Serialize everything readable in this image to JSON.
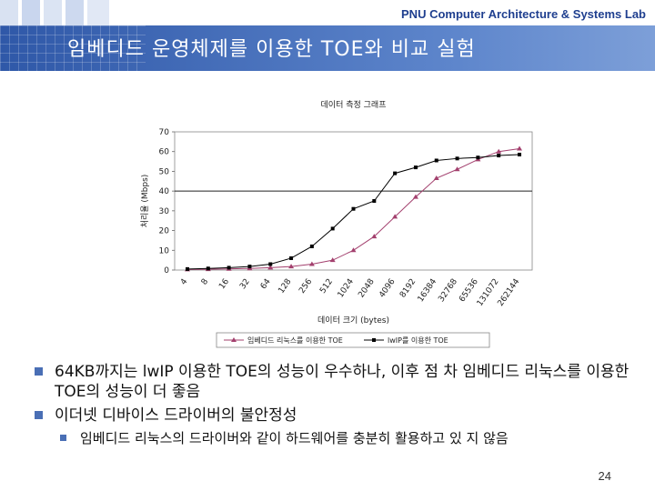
{
  "header": {
    "lab_title": "PNU Computer Architecture & Systems Lab",
    "slide_title": "임베디드 운영체제를 이용한 TOE와 비교 실험"
  },
  "chart_data": {
    "type": "line",
    "title": "데이터 측정 그래프",
    "xlabel": "데이터 크기 (bytes)",
    "ylabel": "처리율 (Mbps)",
    "ylim": [
      0,
      70
    ],
    "yticks": [
      0,
      10,
      20,
      30,
      40,
      50,
      60,
      70
    ],
    "categories": [
      "4",
      "8",
      "16",
      "32",
      "64",
      "128",
      "256",
      "512",
      "1024",
      "2048",
      "4096",
      "8192",
      "16384",
      "32768",
      "65536",
      "131072",
      "262144"
    ],
    "reference_line": 40,
    "legend_position": "bottom",
    "series": [
      {
        "name": "임베디드 리눅스를 이용한 TOE",
        "color": "#a3406e",
        "marker": "triangle",
        "values": [
          0.3,
          0.4,
          0.6,
          0.8,
          1.2,
          1.8,
          3,
          5,
          10,
          17,
          27,
          37,
          46.5,
          51,
          56,
          60,
          61.5
        ]
      },
      {
        "name": "lwIP를 이용한 TOE",
        "color": "#000000",
        "marker": "square",
        "values": [
          0.5,
          0.8,
          1.2,
          1.8,
          3,
          6,
          12,
          21,
          31,
          35,
          49,
          52,
          55.5,
          56.5,
          57,
          58,
          58.5
        ]
      }
    ]
  },
  "bullets": [
    {
      "text": "64KB까지는 lwIP 이용한 TOE의 성능이 우수하나, 이후 점 차 임베디드 리눅스를 이용한 TOE의 성능이 더 좋음"
    },
    {
      "text": "이더넷 디바이스 드라이버의 불안정성",
      "sub": [
        {
          "text": "임베디드 리눅스의 드라이버와 같이 하드웨어를 충분히 활용하고 있 지 않음"
        }
      ]
    }
  ],
  "footer": {
    "page_number": "24"
  }
}
